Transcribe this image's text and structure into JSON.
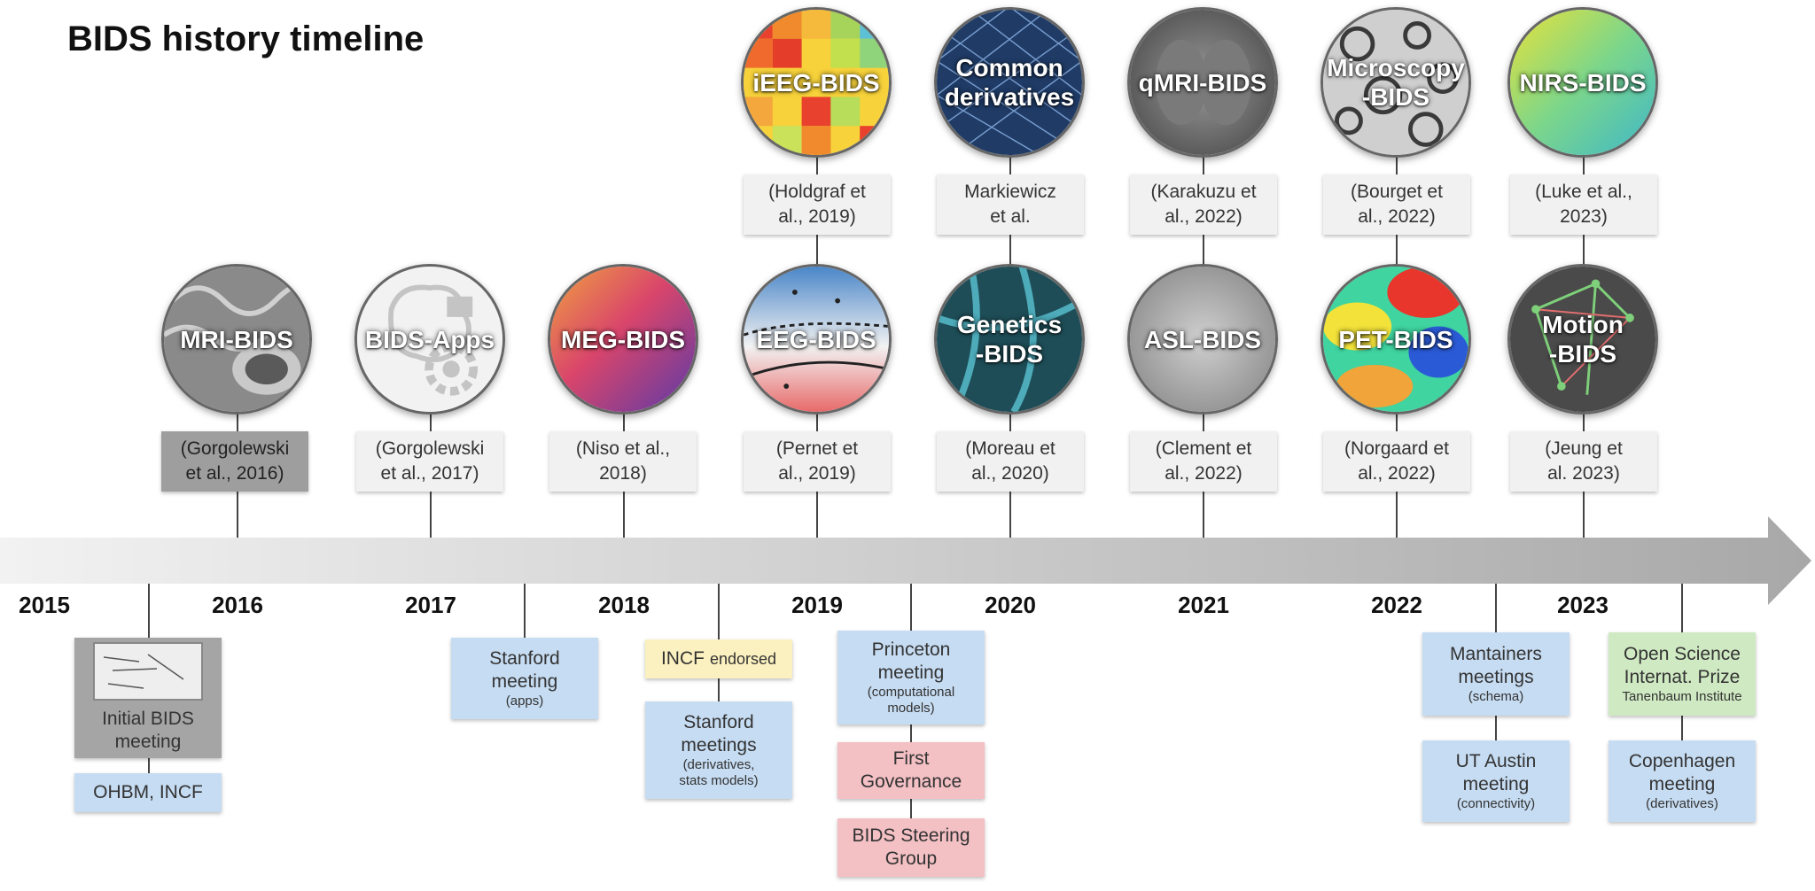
{
  "title": "BIDS history timeline",
  "years": [
    "2015",
    "2016",
    "2017",
    "2018",
    "2019",
    "2020",
    "2021",
    "2022",
    "2023"
  ],
  "top_circles": [
    {
      "label": "iEEG-BIDS",
      "citation": "(Holdgraf et\nal., 2019)"
    },
    {
      "label": "Common\nderivatives",
      "citation": "Markiewicz\net al."
    },
    {
      "label": "qMRI-BIDS",
      "citation": "(Karakuzu et\nal., 2022)"
    },
    {
      "label": "Microscopy\n-BIDS",
      "citation": "(Bourget et\nal., 2022)"
    },
    {
      "label": "NIRS-BIDS",
      "citation": "(Luke et al.,\n2023)"
    }
  ],
  "mid_circles": [
    {
      "label": "MRI-BIDS",
      "citation": "(Gorgolewski\net al., 2016)"
    },
    {
      "label": "BIDS-Apps",
      "citation": "(Gorgolewski\net al., 2017)"
    },
    {
      "label": "MEG-BIDS",
      "citation": "(Niso et al.,\n2018)"
    },
    {
      "label": "EEG-BIDS",
      "citation": "(Pernet et\nal., 2019)"
    },
    {
      "label": "Genetics\n-BIDS",
      "citation": "(Moreau et\nal., 2020)"
    },
    {
      "label": "ASL-BIDS",
      "citation": "(Clement et\nal., 2022)"
    },
    {
      "label": "PET-BIDS",
      "citation": "(Norgaard et\nal., 2022)"
    },
    {
      "label": "Motion\n-BIDS",
      "citation": "(Jeung et\nal. 2023)"
    }
  ],
  "events": {
    "initial": {
      "main": "Initial BIDS\nmeeting"
    },
    "ohbm": {
      "main": "OHBM, INCF"
    },
    "stanford_apps": {
      "main": "Stanford\nmeeting",
      "sub": "(apps)"
    },
    "incf": {
      "main": "INCF",
      "sub": "endorsed"
    },
    "stanford_deriv": {
      "main": "Stanford\nmeetings",
      "sub": "(derivatives,\nstats models)"
    },
    "princeton": {
      "main": "Princeton\nmeeting",
      "sub": "(computational\nmodels)"
    },
    "first_gov": {
      "main": "First\nGovernance"
    },
    "steering": {
      "main": "BIDS Steering\nGroup"
    },
    "maintainers": {
      "main": "Mantainers\nmeetings",
      "sub": "(schema)"
    },
    "ut_austin": {
      "main": "UT Austin\nmeeting",
      "sub": "(connectivity)"
    },
    "prize": {
      "main": "Open Science\nInternat. Prize",
      "sub": "Tanenbaum Institute"
    },
    "copenhagen": {
      "main": "Copenhagen\nmeeting",
      "sub": "(derivatives)"
    }
  },
  "colors": {
    "event_blue": "#c6dcf2",
    "event_pink": "#f3c0c4",
    "event_yellow": "#fbf1c0",
    "event_green": "#cfe9c2",
    "citation_bg": "#f1f1f1"
  }
}
